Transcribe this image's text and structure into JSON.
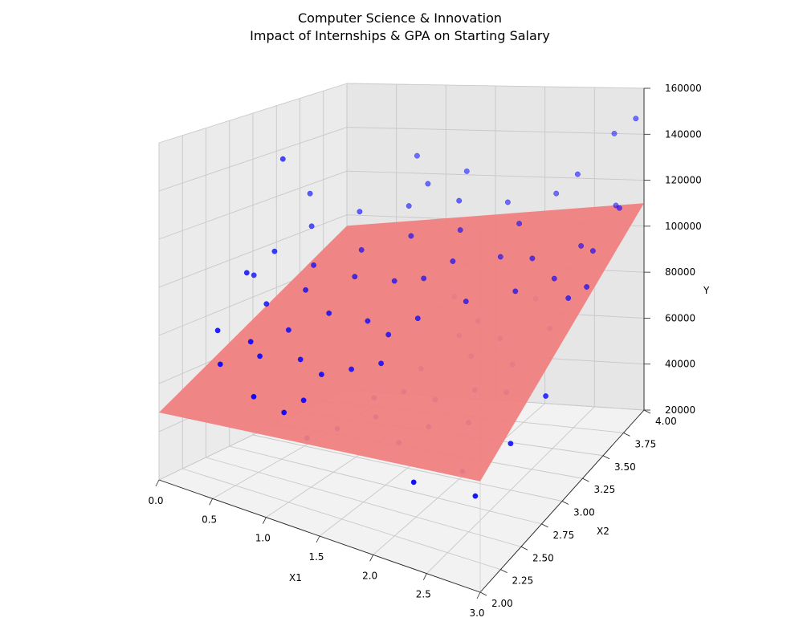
{
  "chart_data": {
    "type": "scatter",
    "subtype": "3d-scatter-with-regression-plane",
    "title": "Computer Science & Innovation",
    "subtitle": "Impact of Internships & GPA on Starting Salary",
    "xlabel": "X1",
    "ylabel": "X2",
    "zlabel": "Y",
    "xlim": [
      0.0,
      3.0
    ],
    "ylim": [
      2.0,
      4.0
    ],
    "zlim": [
      20000,
      160000
    ],
    "x_ticks": [
      "0.0",
      "0.5",
      "1.0",
      "1.5",
      "2.0",
      "2.5",
      "3.0"
    ],
    "y_ticks": [
      "2.00",
      "2.25",
      "2.50",
      "2.75",
      "3.00",
      "3.25",
      "3.50",
      "3.75",
      "4.00"
    ],
    "z_ticks": [
      "20000",
      "40000",
      "60000",
      "80000",
      "100000",
      "120000",
      "140000",
      "160000"
    ],
    "grid": true,
    "point_color": "#0000ff",
    "plane_color": "#f08080",
    "pane_colors": [
      "#f2f2f2",
      "#ebebeb",
      "#e6e6e6"
    ],
    "plane": {
      "x_range": [
        0.0,
        3.0
      ],
      "y_range": [
        2.0,
        4.0
      ],
      "z_corners": [
        48000,
        63000,
        95000,
        110000
      ]
    },
    "points": [
      [
        0.2,
        3.1,
        140000
      ],
      [
        0.3,
        2.6,
        100000
      ],
      [
        0.1,
        2.9,
        92000
      ],
      [
        0.6,
        2.3,
        80000
      ],
      [
        0.4,
        2.2,
        70000
      ],
      [
        0.8,
        2.1,
        64000
      ],
      [
        0.9,
        2.5,
        72000
      ],
      [
        1.0,
        2.7,
        88000
      ],
      [
        1.1,
        2.3,
        62000
      ],
      [
        1.3,
        2.6,
        70000
      ],
      [
        1.4,
        2.9,
        78000
      ],
      [
        1.2,
        3.2,
        92000
      ],
      [
        0.7,
        3.4,
        98000
      ],
      [
        0.5,
        3.6,
        110000
      ],
      [
        1.5,
        2.2,
        58000
      ],
      [
        1.6,
        2.5,
        64000
      ],
      [
        1.8,
        2.8,
        70000
      ],
      [
        2.0,
        3.0,
        80000
      ],
      [
        1.7,
        3.3,
        86000
      ],
      [
        1.9,
        3.6,
        96000
      ],
      [
        2.2,
        2.4,
        62000
      ],
      [
        2.4,
        2.7,
        70000
      ],
      [
        2.1,
        3.1,
        84000
      ],
      [
        2.3,
        3.5,
        100000
      ],
      [
        2.6,
        2.9,
        76000
      ],
      [
        2.5,
        3.3,
        90000
      ],
      [
        2.7,
        3.6,
        104000
      ],
      [
        2.8,
        3.9,
        112000
      ],
      [
        2.9,
        3.2,
        96000
      ],
      [
        3.0,
        3.7,
        118000
      ],
      [
        2.6,
        2.3,
        52000
      ],
      [
        2.9,
        2.5,
        60000
      ],
      [
        2.8,
        2.2,
        48000
      ],
      [
        3.0,
        2.8,
        70000
      ],
      [
        1.0,
        3.8,
        120000
      ],
      [
        0.8,
        3.9,
        130000
      ],
      [
        1.3,
        3.9,
        124000
      ],
      [
        2.2,
        3.9,
        116000
      ],
      [
        2.5,
        3.8,
        128000
      ],
      [
        3.0,
        3.9,
        150000
      ],
      [
        2.7,
        4.0,
        140000
      ],
      [
        0.3,
        3.3,
        108000
      ],
      [
        0.6,
        2.9,
        90000
      ],
      [
        0.9,
        3.1,
        94000
      ],
      [
        1.1,
        3.5,
        104000
      ],
      [
        1.4,
        3.3,
        92000
      ],
      [
        1.6,
        3.0,
        84000
      ],
      [
        1.8,
        2.6,
        66000
      ],
      [
        2.0,
        2.3,
        56000
      ],
      [
        2.3,
        2.1,
        50000
      ],
      [
        1.5,
        2.7,
        72000
      ],
      [
        1.2,
        2.9,
        82000
      ],
      [
        0.4,
        2.7,
        86000
      ],
      [
        0.2,
        2.4,
        78000
      ],
      [
        0.7,
        2.6,
        80000
      ],
      [
        1.9,
        3.2,
        88000
      ],
      [
        2.4,
        3.0,
        82000
      ],
      [
        2.1,
        2.6,
        66000
      ],
      [
        1.7,
        2.4,
        60000
      ],
      [
        0.5,
        3.1,
        96000
      ],
      [
        1.0,
        2.2,
        58000
      ],
      [
        1.3,
        2.1,
        54000
      ],
      [
        2.6,
        3.4,
        96000
      ],
      [
        2.8,
        3.1,
        86000
      ],
      [
        0.1,
        3.5,
        118000
      ],
      [
        0.9,
        3.7,
        112000
      ],
      [
        1.5,
        3.6,
        106000
      ],
      [
        2.0,
        3.7,
        108000
      ],
      [
        2.2,
        2.9,
        76000
      ],
      [
        1.1,
        2.5,
        68000
      ],
      [
        0.6,
        2.4,
        72000
      ],
      [
        1.8,
        3.8,
        114000
      ],
      [
        2.5,
        2.5,
        64000
      ],
      [
        2.9,
        3.5,
        106000
      ],
      [
        3.0,
        3.3,
        98000
      ],
      [
        2.7,
        2.7,
        72000
      ],
      [
        1.4,
        3.7,
        116000
      ],
      [
        0.3,
        2.9,
        104000
      ],
      [
        1.6,
        3.4,
        98000
      ],
      [
        2.3,
        3.3,
        92000
      ]
    ]
  }
}
